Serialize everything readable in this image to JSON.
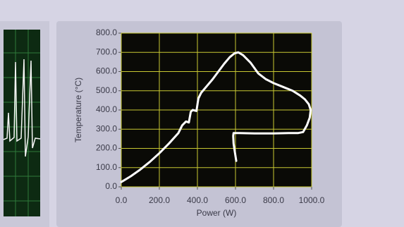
{
  "chart_data": {
    "type": "line",
    "x_label": "Power (W)",
    "y_label": "Temperature (°C)",
    "x": [
      0,
      50,
      100,
      150,
      200,
      250,
      300,
      320,
      340,
      355,
      365,
      375,
      395,
      405,
      420,
      450,
      480,
      510,
      540,
      570,
      595,
      615,
      640,
      680,
      720,
      760,
      800,
      850,
      900,
      940,
      965,
      985,
      995,
      990,
      975,
      955,
      930,
      880,
      800,
      700,
      620,
      590,
      588,
      590,
      596,
      604
    ],
    "values": [
      25,
      55,
      90,
      130,
      175,
      225,
      280,
      320,
      340,
      335,
      390,
      400,
      395,
      460,
      490,
      525,
      560,
      600,
      640,
      675,
      695,
      700,
      685,
      645,
      590,
      560,
      540,
      520,
      500,
      475,
      455,
      430,
      400,
      360,
      320,
      285,
      280,
      280,
      278,
      278,
      280,
      280,
      265,
      225,
      185,
      135
    ],
    "color": "#ffffff",
    "xlim": [
      0,
      1000
    ],
    "ylim": [
      0,
      800
    ],
    "xticks": [
      {
        "value": 0,
        "label": "0.0"
      },
      {
        "value": 200,
        "label": "200.0"
      },
      {
        "value": 400,
        "label": "400.0"
      },
      {
        "value": 600,
        "label": "600.0"
      },
      {
        "value": 800,
        "label": "800.0"
      },
      {
        "value": 1000,
        "label": "1000.0"
      }
    ],
    "yticks": [
      {
        "value": 0,
        "label": "0.0"
      },
      {
        "value": 100,
        "label": "100.0"
      },
      {
        "value": 200,
        "label": "200.0"
      },
      {
        "value": 300,
        "label": "300.0"
      },
      {
        "value": 400,
        "label": "400.0"
      },
      {
        "value": 500,
        "label": "500.0"
      },
      {
        "value": 600,
        "label": "600.0"
      },
      {
        "value": 700,
        "label": "700.0"
      },
      {
        "value": 800,
        "label": "800.0"
      }
    ],
    "grid": true,
    "grid_color": "#c8c832",
    "background": "#0a0a06"
  }
}
